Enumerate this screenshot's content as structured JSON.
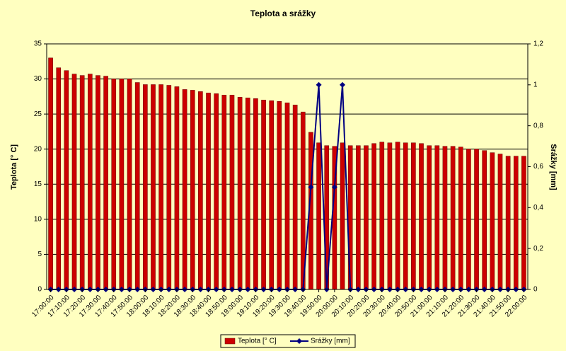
{
  "chart_data": {
    "type": "bar",
    "title": "Teplota a srážky",
    "y_label": "Teplota [° C]",
    "y2_label": "Srážky [mm]",
    "categories": [
      "17:00:00",
      null,
      "17:10:00",
      null,
      "17:20:00",
      null,
      "17:30:00",
      null,
      "17:40:00",
      null,
      "17:50:00",
      null,
      "18:00:00",
      null,
      "18:10:00",
      null,
      "18:20:00",
      null,
      "18:30:00",
      null,
      "18:40:00",
      null,
      "18:50:00",
      null,
      "19:00:00",
      null,
      "19:10:00",
      null,
      "19:20:00",
      null,
      "19:30:00",
      null,
      "19:40:00",
      null,
      "19:50:00",
      null,
      "20:00:00",
      null,
      "20:10:00",
      null,
      "20:20:00",
      null,
      "20:30:00",
      null,
      "20:40:00",
      null,
      "20:50:00",
      null,
      "21:00:00",
      null,
      "21:10:00",
      null,
      "21:20:00",
      null,
      "21:30:00",
      null,
      "21:40:00",
      null,
      "21:50:00",
      null,
      "22:00:00"
    ],
    "series": [
      {
        "name": "Teplota [° C]",
        "type": "bar",
        "color": "#cc0000",
        "values": [
          33.0,
          31.6,
          31.2,
          30.7,
          30.5,
          30.7,
          30.5,
          30.4,
          30.0,
          30.0,
          30.0,
          29.5,
          29.2,
          29.2,
          29.2,
          29.1,
          28.9,
          28.5,
          28.4,
          28.2,
          28.0,
          27.9,
          27.7,
          27.7,
          27.4,
          27.3,
          27.2,
          27.0,
          26.9,
          26.8,
          26.6,
          26.3,
          25.3,
          22.4,
          20.9,
          20.5,
          20.4,
          20.9,
          20.5,
          20.5,
          20.5,
          20.8,
          21.0,
          20.9,
          21.0,
          20.9,
          20.9,
          20.8,
          20.5,
          20.5,
          20.4,
          20.4,
          20.3,
          20.0,
          20.0,
          19.8,
          19.5,
          19.3,
          19.0,
          19.0,
          19.0
        ]
      },
      {
        "name": "Srážky [mm]",
        "type": "line",
        "axis": "y2",
        "color": "#000080",
        "values": [
          0,
          0,
          0,
          0,
          0,
          0,
          0,
          0,
          0,
          0,
          0,
          0,
          0,
          0,
          0,
          0,
          0,
          0,
          0,
          0,
          0,
          0,
          0,
          0,
          0,
          0,
          0,
          0,
          0,
          0,
          0,
          0,
          0,
          0.5,
          1,
          0,
          0.5,
          1,
          0,
          0,
          0,
          0,
          0,
          0,
          0,
          0,
          0,
          0,
          0,
          0,
          0,
          0,
          0,
          0,
          0,
          0,
          0,
          0,
          0,
          0,
          0
        ]
      }
    ],
    "ylim": [
      0,
      35
    ],
    "yticks": [
      0,
      5,
      10,
      15,
      20,
      25,
      30,
      35
    ],
    "y2lim": [
      0,
      1.2
    ],
    "y2ticks": [
      0,
      {
        "value": 0.2,
        "label": "0,2"
      },
      {
        "value": 0.4,
        "label": "0,4"
      },
      {
        "value": 0.6,
        "label": "0,6"
      },
      {
        "value": 0.8,
        "label": "0,8"
      },
      1,
      {
        "value": 1.2,
        "label": "1,2"
      }
    ],
    "grid": true,
    "legend": "bottom"
  }
}
